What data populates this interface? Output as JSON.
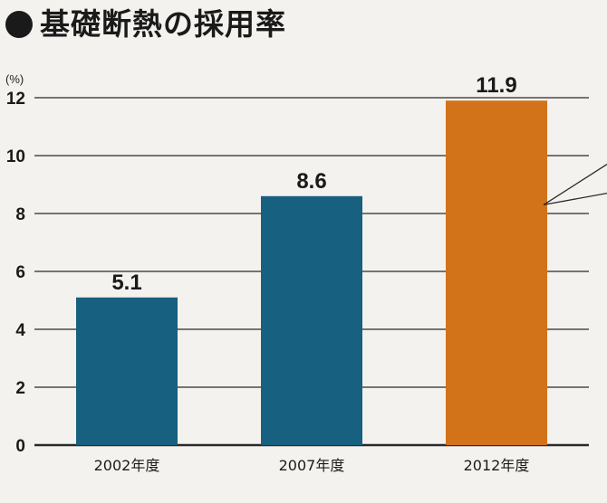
{
  "title": "基礎断熱の採用率",
  "unit_label": "(%)",
  "colors": {
    "bar_default": "#17607f",
    "bar_highlight": "#d27219",
    "grid": "#2a2a2a",
    "text": "#1a1a1a"
  },
  "chart_data": {
    "type": "bar",
    "title": "基礎断熱の採用率",
    "ylabel": "(%)",
    "categories": [
      "2002年度",
      "2007年度",
      "2012年度"
    ],
    "values": [
      5.1,
      8.6,
      11.9
    ],
    "value_labels": [
      "5.1",
      "8.6",
      "11.9"
    ],
    "highlight_index": 2,
    "ylim": [
      0,
      12
    ],
    "yticks": [
      0,
      2,
      4,
      6,
      8,
      10,
      12
    ],
    "grid": true,
    "legend": "none"
  }
}
